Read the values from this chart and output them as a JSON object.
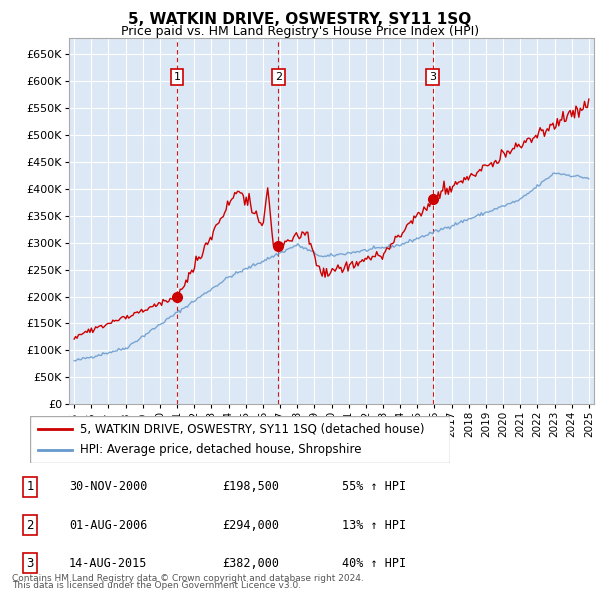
{
  "title": "5, WATKIN DRIVE, OSWESTRY, SY11 1SQ",
  "subtitle": "Price paid vs. HM Land Registry's House Price Index (HPI)",
  "legend_line1": "5, WATKIN DRIVE, OSWESTRY, SY11 1SQ (detached house)",
  "legend_line2": "HPI: Average price, detached house, Shropshire",
  "footer1": "Contains HM Land Registry data © Crown copyright and database right 2024.",
  "footer2": "This data is licensed under the Open Government Licence v3.0.",
  "sale_points": [
    {
      "label": "1",
      "date": "30-NOV-2000",
      "price": 198500,
      "pct": "55%",
      "dir": "↑",
      "x_year": 2001.0
    },
    {
      "label": "2",
      "date": "01-AUG-2006",
      "price": 294000,
      "pct": "13%",
      "dir": "↑",
      "x_year": 2006.9
    },
    {
      "label": "3",
      "date": "14-AUG-2015",
      "price": 382000,
      "pct": "40%",
      "dir": "↑",
      "x_year": 2015.9
    }
  ],
  "vline_color": "#cc0000",
  "sale_marker_color": "#cc0000",
  "hpi_color": "#6699cc",
  "price_color": "#cc0000",
  "ylim": [
    0,
    680000
  ],
  "xlim_start": 1994.7,
  "xlim_end": 2025.3,
  "yticks": [
    0,
    50000,
    100000,
    150000,
    200000,
    250000,
    300000,
    350000,
    400000,
    450000,
    500000,
    550000,
    600000,
    650000
  ],
  "ytick_labels": [
    "£0",
    "£50K",
    "£100K",
    "£150K",
    "£200K",
    "£250K",
    "£300K",
    "£350K",
    "£400K",
    "£450K",
    "£500K",
    "£550K",
    "£600K",
    "£650K"
  ],
  "xticks": [
    1995,
    1996,
    1997,
    1998,
    1999,
    2000,
    2001,
    2002,
    2003,
    2004,
    2005,
    2006,
    2007,
    2008,
    2009,
    2010,
    2011,
    2012,
    2013,
    2014,
    2015,
    2016,
    2017,
    2018,
    2019,
    2020,
    2021,
    2022,
    2023,
    2024,
    2025
  ],
  "background_color": "#dce8f5",
  "grid_color": "#ffffff"
}
